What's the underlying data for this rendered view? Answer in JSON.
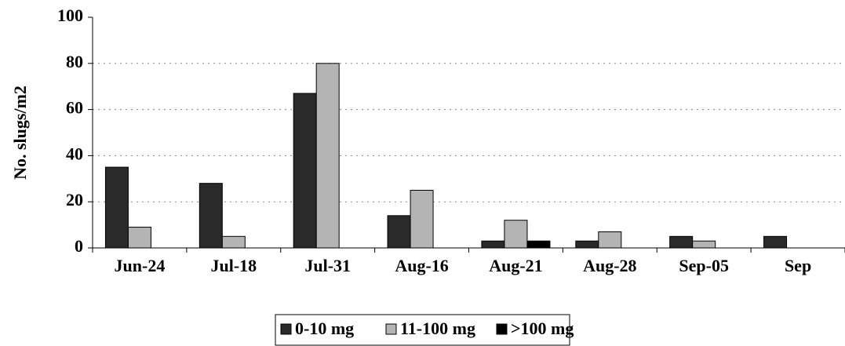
{
  "chart_data": {
    "type": "bar",
    "y_label": "No. slugs/m2",
    "categories": [
      "Jun-24",
      "Jul-18",
      "Jul-31",
      "Aug-16",
      "Aug-21",
      "Aug-28",
      "Sep-05",
      "Sep"
    ],
    "series": [
      {
        "name": "0-10 mg",
        "color": "#2a2a2a",
        "values": [
          35,
          28,
          67,
          14,
          3,
          3,
          5,
          5
        ]
      },
      {
        "name": "11-100 mg",
        "color": "#b4b4b4",
        "values": [
          9,
          5,
          80,
          25,
          12,
          7,
          3,
          0
        ]
      },
      {
        "name": ">100 mg",
        "color": "#000000",
        "values": [
          0,
          0,
          0,
          0,
          3,
          0,
          0,
          0
        ]
      }
    ],
    "ylim": [
      0,
      100
    ],
    "yticks": [
      0,
      20,
      40,
      60,
      80,
      100
    ],
    "grid": true,
    "legend": "bottom"
  }
}
